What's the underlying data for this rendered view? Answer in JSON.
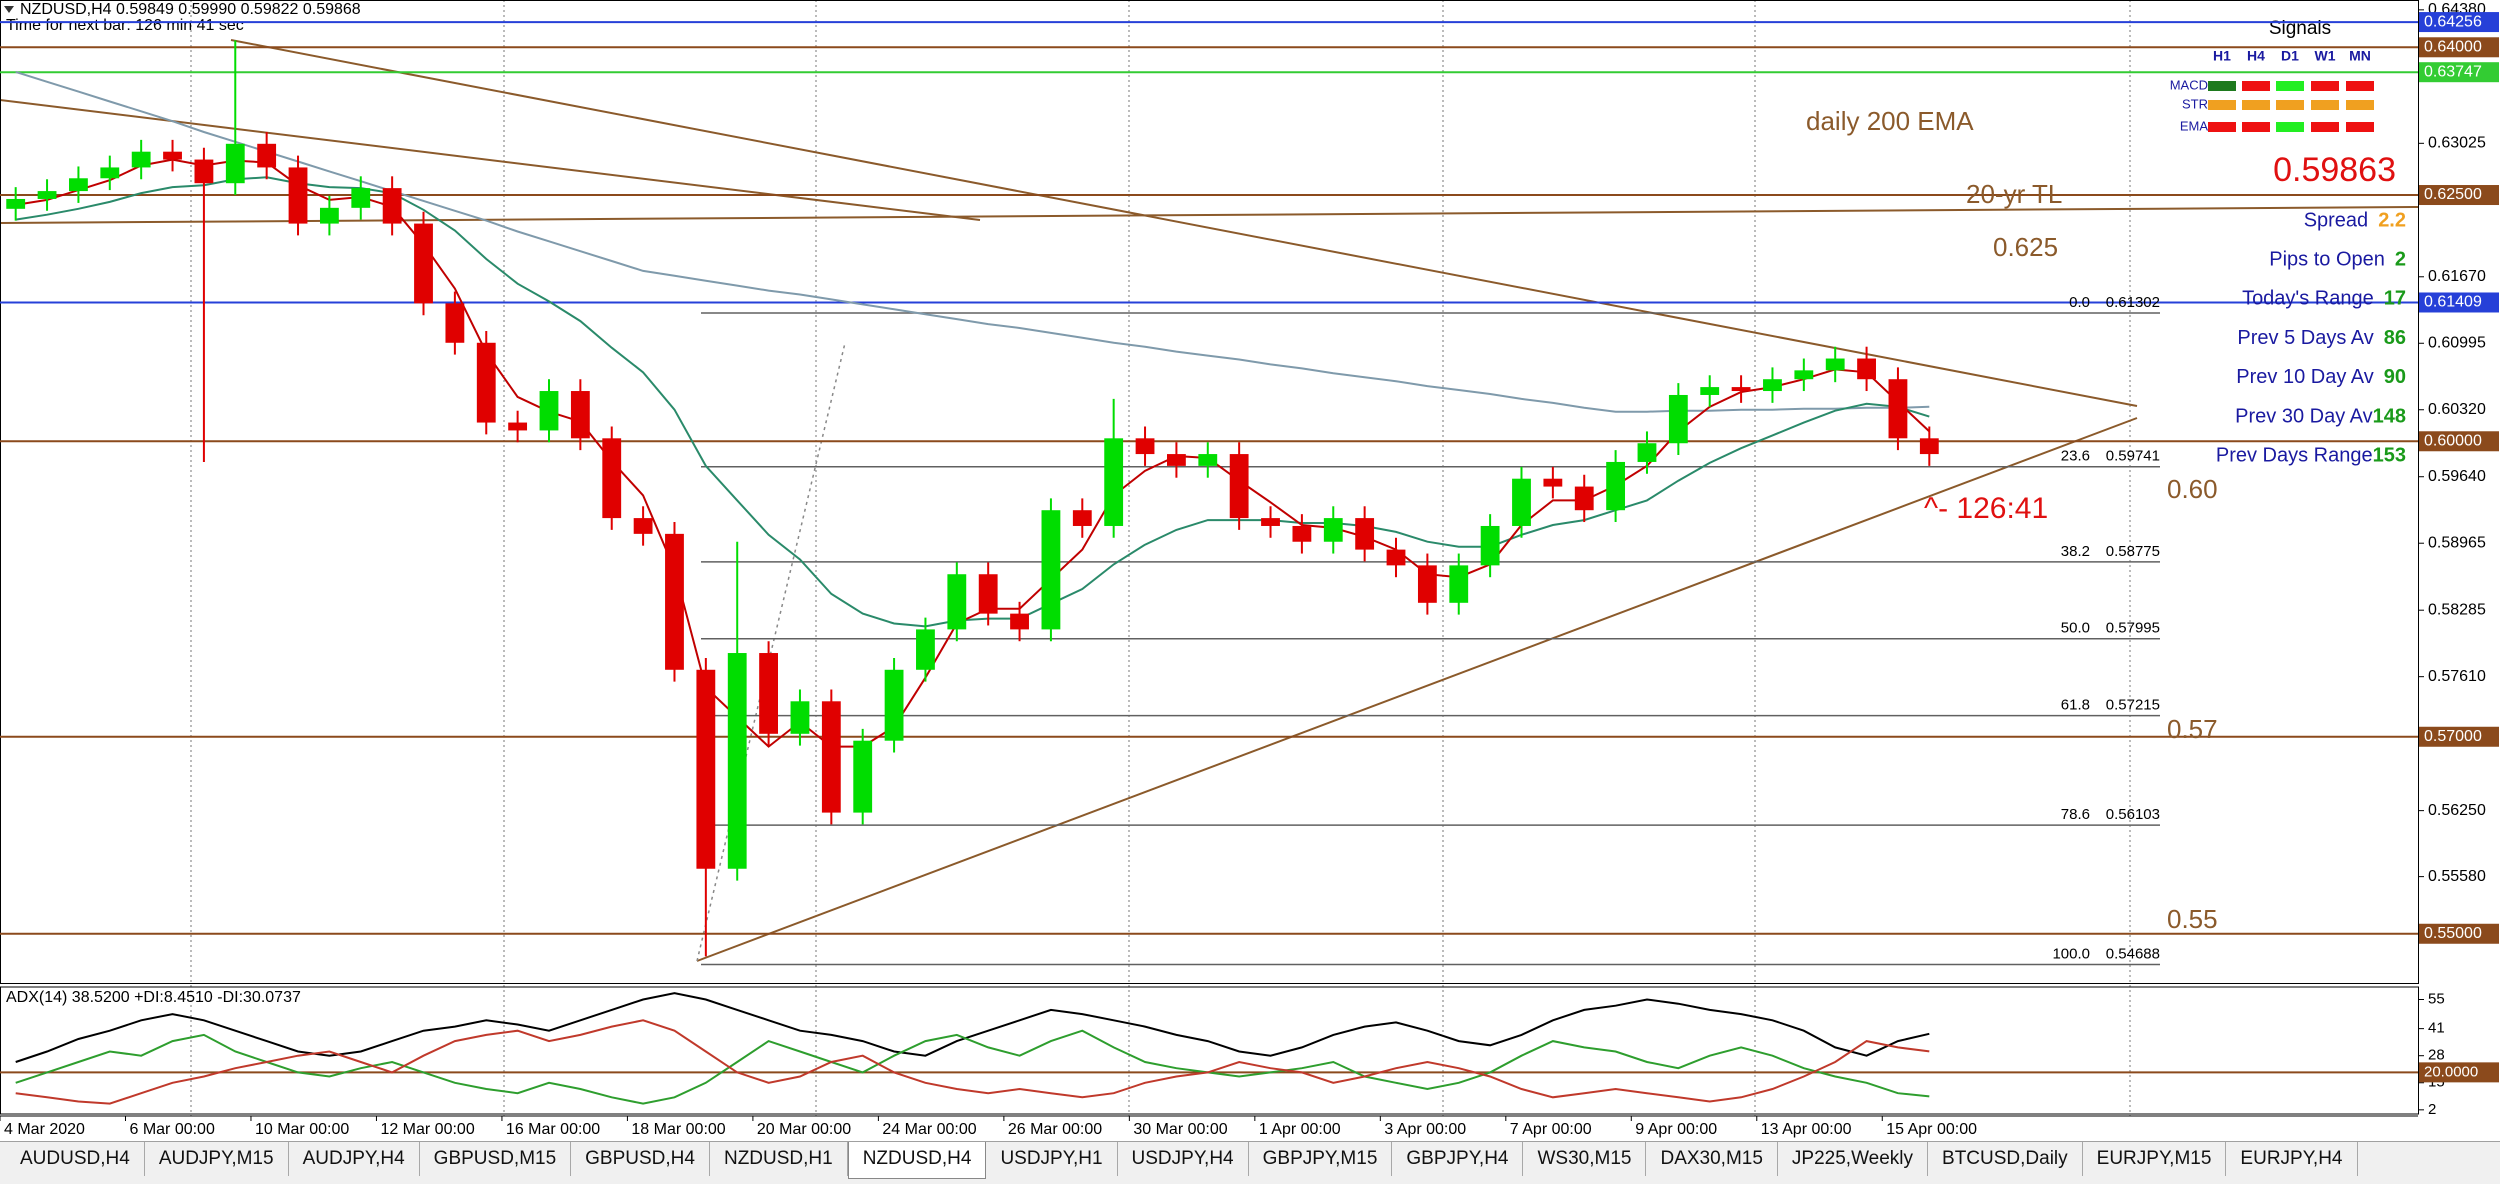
{
  "chart_data": {
    "type": "candlestick",
    "title": "NZDUSD,H4  0.59849 0.59990 0.59822 0.59868",
    "subtitle": "Time for next bar: 126 min 41 sec",
    "categories": [
      "4 Mar 2020",
      null,
      null,
      null,
      "6 Mar 00:00",
      null,
      null,
      null,
      "10 Mar 00:00",
      null,
      null,
      null,
      "12 Mar 00:00",
      null,
      null,
      null,
      "16 Mar 00:00",
      null,
      null,
      null,
      "18 Mar 00:00",
      null,
      null,
      null,
      "20 Mar 00:00",
      null,
      null,
      null,
      "24 Mar 00:00",
      null,
      null,
      null,
      "26 Mar 00:00",
      null,
      null,
      null,
      "30 Mar 00:00",
      null,
      null,
      null,
      "1 Apr 00:00",
      null,
      null,
      null,
      "3 Apr 00:00",
      null,
      null,
      null,
      "7 Apr 00:00",
      null,
      null,
      null,
      "9 Apr 00:00",
      null,
      null,
      null,
      "13 Apr 00:00",
      null,
      null,
      null,
      "15 Apr 00:00",
      null
    ],
    "open": [
      0.6236,
      0.6246,
      0.6254,
      0.6267,
      0.6278,
      0.6294,
      0.6286,
      0.6262,
      0.6302,
      0.6278,
      0.6221,
      0.6237,
      0.6257,
      0.6221,
      0.614,
      0.61,
      0.6019,
      0.6011,
      0.6051,
      0.6003,
      0.5922,
      0.5906,
      0.5768,
      0.5566,
      0.5785,
      0.5703,
      0.5736,
      0.5623,
      0.5696,
      0.5768,
      0.5809,
      0.5865,
      0.5825,
      0.5809,
      0.593,
      0.5914,
      0.6003,
      0.5987,
      0.5975,
      0.5987,
      0.5922,
      0.5914,
      0.5898,
      0.5922,
      0.589,
      0.5874,
      0.5836,
      0.5874,
      0.5914,
      0.5962,
      0.5954,
      0.593,
      0.5979,
      0.5998,
      0.6047,
      0.6055,
      0.6051,
      0.6063,
      0.6072,
      0.6084,
      0.6063,
      0.6003
    ],
    "high": [
      0.6258,
      0.6266,
      0.6279,
      0.629,
      0.6306,
      0.6306,
      0.6298,
      0.6407,
      0.6314,
      0.629,
      0.6249,
      0.6269,
      0.6269,
      0.6233,
      0.6152,
      0.6112,
      0.6031,
      0.6063,
      0.6063,
      0.6015,
      0.5934,
      0.5918,
      0.578,
      0.5898,
      0.5797,
      0.5748,
      0.5748,
      0.5708,
      0.578,
      0.5821,
      0.5877,
      0.5877,
      0.5837,
      0.5942,
      0.5942,
      0.6043,
      0.6015,
      0.5999,
      0.5999,
      0.5999,
      0.5934,
      0.5926,
      0.5934,
      0.5934,
      0.5902,
      0.5886,
      0.5886,
      0.5926,
      0.5974,
      0.5974,
      0.5966,
      0.5991,
      0.601,
      0.6059,
      0.6067,
      0.6067,
      0.6075,
      0.6084,
      0.6096,
      0.6096,
      0.6075,
      0.6015
    ],
    "low": [
      0.6224,
      0.6234,
      0.6242,
      0.6255,
      0.6266,
      0.6274,
      0.5979,
      0.625,
      0.6266,
      0.6209,
      0.6209,
      0.6225,
      0.6209,
      0.6128,
      0.6088,
      0.6007,
      0.5999,
      0.5999,
      0.5991,
      0.591,
      0.5894,
      0.5756,
      0.5477,
      0.5554,
      0.5691,
      0.5691,
      0.5611,
      0.5611,
      0.5684,
      0.5756,
      0.5797,
      0.5813,
      0.5797,
      0.5797,
      0.5902,
      0.5902,
      0.5975,
      0.5963,
      0.5963,
      0.591,
      0.5902,
      0.5886,
      0.5886,
      0.5878,
      0.5862,
      0.5824,
      0.5824,
      0.5862,
      0.5902,
      0.5942,
      0.5918,
      0.5918,
      0.5967,
      0.5986,
      0.6035,
      0.6039,
      0.6039,
      0.6051,
      0.606,
      0.6051,
      0.5991,
      0.5975
    ],
    "close": [
      0.6246,
      0.6254,
      0.6267,
      0.6278,
      0.6294,
      0.6286,
      0.6262,
      0.6302,
      0.6278,
      0.6221,
      0.6237,
      0.6257,
      0.6221,
      0.614,
      0.61,
      0.6019,
      0.6011,
      0.6051,
      0.6003,
      0.5922,
      0.5906,
      0.5768,
      0.5566,
      0.5785,
      0.5703,
      0.5736,
      0.5623,
      0.5696,
      0.5768,
      0.5809,
      0.5865,
      0.5825,
      0.5809,
      0.593,
      0.5914,
      0.6003,
      0.5987,
      0.5975,
      0.5987,
      0.5922,
      0.5914,
      0.5898,
      0.5922,
      0.589,
      0.5874,
      0.5836,
      0.5874,
      0.5914,
      0.5962,
      0.5954,
      0.593,
      0.5979,
      0.5998,
      0.6047,
      0.6055,
      0.6051,
      0.6063,
      0.6072,
      0.6084,
      0.6063,
      0.6003,
      0.5987
    ],
    "up_color": "#00dd00",
    "down_color": "#e00000",
    "moving_averages": [
      {
        "color": "#7f9aab",
        "values": [
          0.6375,
          0.6365,
          0.6355,
          0.6345,
          0.6335,
          0.6325,
          0.6314,
          0.6304,
          0.6294,
          0.6284,
          0.6274,
          0.6264,
          0.6254,
          0.6244,
          0.6234,
          0.6224,
          0.6213,
          0.6203,
          0.6193,
          0.6183,
          0.6173,
          0.6168,
          0.6163,
          0.6158,
          0.6153,
          0.6149,
          0.6144,
          0.6139,
          0.6134,
          0.6129,
          0.6124,
          0.6119,
          0.6115,
          0.611,
          0.6105,
          0.61,
          0.6096,
          0.6091,
          0.6087,
          0.6083,
          0.6078,
          0.6074,
          0.6069,
          0.6065,
          0.6061,
          0.6056,
          0.6052,
          0.6048,
          0.6043,
          0.6039,
          0.6034,
          0.603,
          0.603,
          0.6031,
          0.6031,
          0.6032,
          0.6032,
          0.6033,
          0.6033,
          0.6034,
          0.6034,
          0.6035
        ]
      },
      {
        "color": "#2a8a6a",
        "values": [
          0.6225,
          0.623,
          0.6236,
          0.6243,
          0.6252,
          0.6258,
          0.626,
          0.6266,
          0.6268,
          0.6262,
          0.6258,
          0.6257,
          0.6252,
          0.6235,
          0.6214,
          0.6185,
          0.616,
          0.6142,
          0.6122,
          0.6095,
          0.607,
          0.6032,
          0.5975,
          0.594,
          0.5905,
          0.588,
          0.5845,
          0.5825,
          0.5815,
          0.5812,
          0.5818,
          0.582,
          0.582,
          0.5835,
          0.585,
          0.5875,
          0.5895,
          0.591,
          0.592,
          0.592,
          0.592,
          0.5917,
          0.5917,
          0.5914,
          0.5908,
          0.5898,
          0.5893,
          0.5893,
          0.5905,
          0.5915,
          0.592,
          0.593,
          0.594,
          0.596,
          0.5978,
          0.5993,
          0.6006,
          0.6019,
          0.6031,
          0.6038,
          0.6035,
          0.6025
        ]
      },
      {
        "color": "#c00000",
        "values": [
          0.624,
          0.6245,
          0.6255,
          0.6265,
          0.628,
          0.6286,
          0.628,
          0.6285,
          0.6283,
          0.626,
          0.6245,
          0.6248,
          0.6238,
          0.62,
          0.6155,
          0.609,
          0.6045,
          0.603,
          0.602,
          0.598,
          0.5945,
          0.587,
          0.575,
          0.572,
          0.569,
          0.5715,
          0.569,
          0.569,
          0.571,
          0.576,
          0.5815,
          0.583,
          0.583,
          0.586,
          0.589,
          0.5945,
          0.597,
          0.5985,
          0.5983,
          0.596,
          0.5938,
          0.5915,
          0.5912,
          0.5903,
          0.589,
          0.5865,
          0.5862,
          0.5875,
          0.5915,
          0.594,
          0.594,
          0.5955,
          0.5975,
          0.601,
          0.6035,
          0.605,
          0.6055,
          0.6063,
          0.6073,
          0.607,
          0.604,
          0.601
        ]
      }
    ],
    "ylim": [
      0.545,
      0.6448
    ],
    "yticks": [
      {
        "value": 0.6438,
        "label": "0.64380"
      },
      0.63025,
      {
        "value": 0.6167,
        "label": "0.61670"
      },
      0.60995,
      {
        "value": 0.6032,
        "label": "0.60320"
      },
      {
        "value": 0.5964,
        "label": "0.59640"
      },
      0.58965,
      0.58285,
      {
        "value": 0.5761,
        "label": "0.57610"
      },
      {
        "value": 0.5625,
        "label": "0.56250"
      },
      {
        "value": 0.5558,
        "label": "0.55580"
      }
    ],
    "price_levels": [
      {
        "value": 0.64256,
        "color": "#2640d8"
      },
      {
        "value": {
          "value": 0.64,
          "label": "0.64000"
        },
        "color": "#8b4a1c"
      },
      {
        "value": 0.63747,
        "color": "#33cc33"
      },
      {
        "value": {
          "value": 0.625,
          "label": "0.62500"
        },
        "color": "#8b4a1c"
      },
      {
        "value": 0.61409,
        "color": "#2640d8"
      },
      {
        "value": {
          "value": 0.6,
          "label": "0.60000"
        },
        "color": "#8b4a1c"
      },
      {
        "value": {
          "value": 0.57,
          "label": "0.57000"
        },
        "color": "#8b4a1c"
      },
      {
        "value": {
          "value": 0.55,
          "label": "0.55000"
        },
        "color": "#8b4a1c"
      }
    ],
    "fibonacci": [
      {
        "ratio": "0.0",
        "price": 0.61302
      },
      {
        "ratio": "23.6",
        "price": 0.59741
      },
      {
        "ratio": "38.2",
        "price": 0.58775
      },
      {
        "ratio": "50.0",
        "price": 0.57995
      },
      {
        "ratio": "61.8",
        "price": 0.57215
      },
      {
        "ratio": "78.6",
        "price": 0.56103
      },
      {
        "ratio": "100.0",
        "price": 0.54688
      }
    ],
    "annotations": [
      {
        "text": "daily 200 EMA",
        "color": "#8b5a2b"
      },
      {
        "text": "20-yr TL",
        "color": "#8b5a2b"
      },
      {
        "text": "0.625",
        "color": "#8b5a2b"
      },
      {
        "text": "0.60",
        "color": "#8b5a2b"
      },
      {
        "text": "0.57",
        "color": "#8b5a2b"
      },
      {
        "text": "0.55",
        "color": "#8b5a2b"
      },
      {
        "text": "^- 126:41",
        "color": "#e01010"
      }
    ],
    "info_panel": {
      "signals": {
        "title": "Signals",
        "columns": [
          "H1",
          "H4",
          "D1",
          "W1",
          "MN"
        ],
        "rows": [
          {
            "name": "MACD",
            "colors": [
              "#1e7a1e",
              "#ee1111",
              "#22ee22",
              "#ee1111",
              "#ee1111"
            ]
          },
          {
            "name": "STR",
            "colors": [
              "#f0a020",
              "#f0a020",
              "#f0a020",
              "#f0a020",
              "#f0a020"
            ]
          },
          {
            "name": "EMA",
            "colors": [
              "#ee1111",
              "#ee1111",
              "#22ee22",
              "#ee1111",
              "#ee1111"
            ]
          }
        ]
      },
      "price": 0.59863,
      "price_color": "#e01010",
      "label_color": "#1a1aa0",
      "stats": [
        {
          "label": "Spread",
          "value": 2.2,
          "color": "#f0a020"
        },
        {
          "label": "Pips to Open",
          "value": 2,
          "color": "#1a9a1a"
        },
        {
          "label": "Today's Range",
          "value": 17,
          "color": "#1a9a1a"
        },
        {
          "label": "Prev 5 Days Av",
          "value": 86,
          "color": "#1a9a1a"
        },
        {
          "label": "Prev 10 Day Av",
          "value": 90,
          "color": "#1a9a1a"
        },
        {
          "label": "Prev 30 Day Av",
          "value": 148,
          "color": "#1a9a1a"
        },
        {
          "label": "Prev Days Range",
          "value": 153,
          "color": "#1a9a1a"
        }
      ]
    },
    "indicator": {
      "type": "line",
      "title": "ADX(14) 38.5200 +DI:8.4510 -DI:30.0737",
      "ylim": [
        0,
        61
      ],
      "yticks": [
        55,
        41,
        28,
        15,
        2
      ],
      "levels": [
        {
          "value": 20,
          "label": "20.0000",
          "color": "#8b4a1c"
        }
      ],
      "series": [
        {
          "color": "#000000",
          "values": [
            25,
            30,
            36,
            40,
            45,
            48,
            45,
            40,
            35,
            30,
            28,
            30,
            35,
            40,
            42,
            45,
            43,
            40,
            45,
            50,
            55,
            58,
            55,
            50,
            45,
            40,
            38,
            35,
            30,
            28,
            35,
            40,
            45,
            50,
            48,
            45,
            42,
            38,
            35,
            30,
            28,
            32,
            38,
            42,
            44,
            40,
            35,
            33,
            38,
            45,
            50,
            52,
            55,
            53,
            50,
            48,
            45,
            40,
            32,
            28,
            35,
            38.52
          ]
        },
        {
          "color": "#2e9e2e",
          "values": [
            15,
            20,
            25,
            30,
            28,
            35,
            38,
            30,
            25,
            20,
            18,
            22,
            25,
            20,
            15,
            12,
            10,
            15,
            12,
            8,
            5,
            8,
            15,
            25,
            35,
            30,
            25,
            20,
            28,
            35,
            38,
            32,
            28,
            35,
            40,
            32,
            25,
            22,
            20,
            18,
            20,
            22,
            25,
            18,
            15,
            12,
            15,
            20,
            28,
            35,
            32,
            30,
            25,
            22,
            28,
            32,
            28,
            22,
            18,
            15,
            10,
            8.451
          ]
        },
        {
          "color": "#c0392b",
          "values": [
            10,
            8,
            6,
            5,
            10,
            15,
            18,
            22,
            25,
            28,
            30,
            25,
            20,
            28,
            35,
            38,
            40,
            35,
            38,
            42,
            45,
            40,
            30,
            20,
            15,
            18,
            25,
            28,
            20,
            15,
            12,
            10,
            12,
            10,
            8,
            10,
            15,
            18,
            20,
            25,
            22,
            20,
            15,
            18,
            22,
            25,
            22,
            18,
            12,
            8,
            10,
            12,
            10,
            8,
            6,
            8,
            12,
            18,
            25,
            35,
            32,
            30.0737
          ]
        }
      ]
    }
  },
  "tabs": [
    "AUDUSD,H4",
    "AUDJPY,M15",
    "AUDJPY,H4",
    "GBPUSD,M15",
    "GBPUSD,H4",
    "NZDUSD,H1",
    "NZDUSD,H4",
    "USDJPY,H1",
    "USDJPY,H4",
    "GBPJPY,M15",
    "GBPJPY,H4",
    "WS30,M15",
    "DAX30,M15",
    "JP225,Weekly",
    "BTCUSD,Daily",
    "EURJPY,M15",
    "EURJPY,H4"
  ],
  "active_tab": 6
}
